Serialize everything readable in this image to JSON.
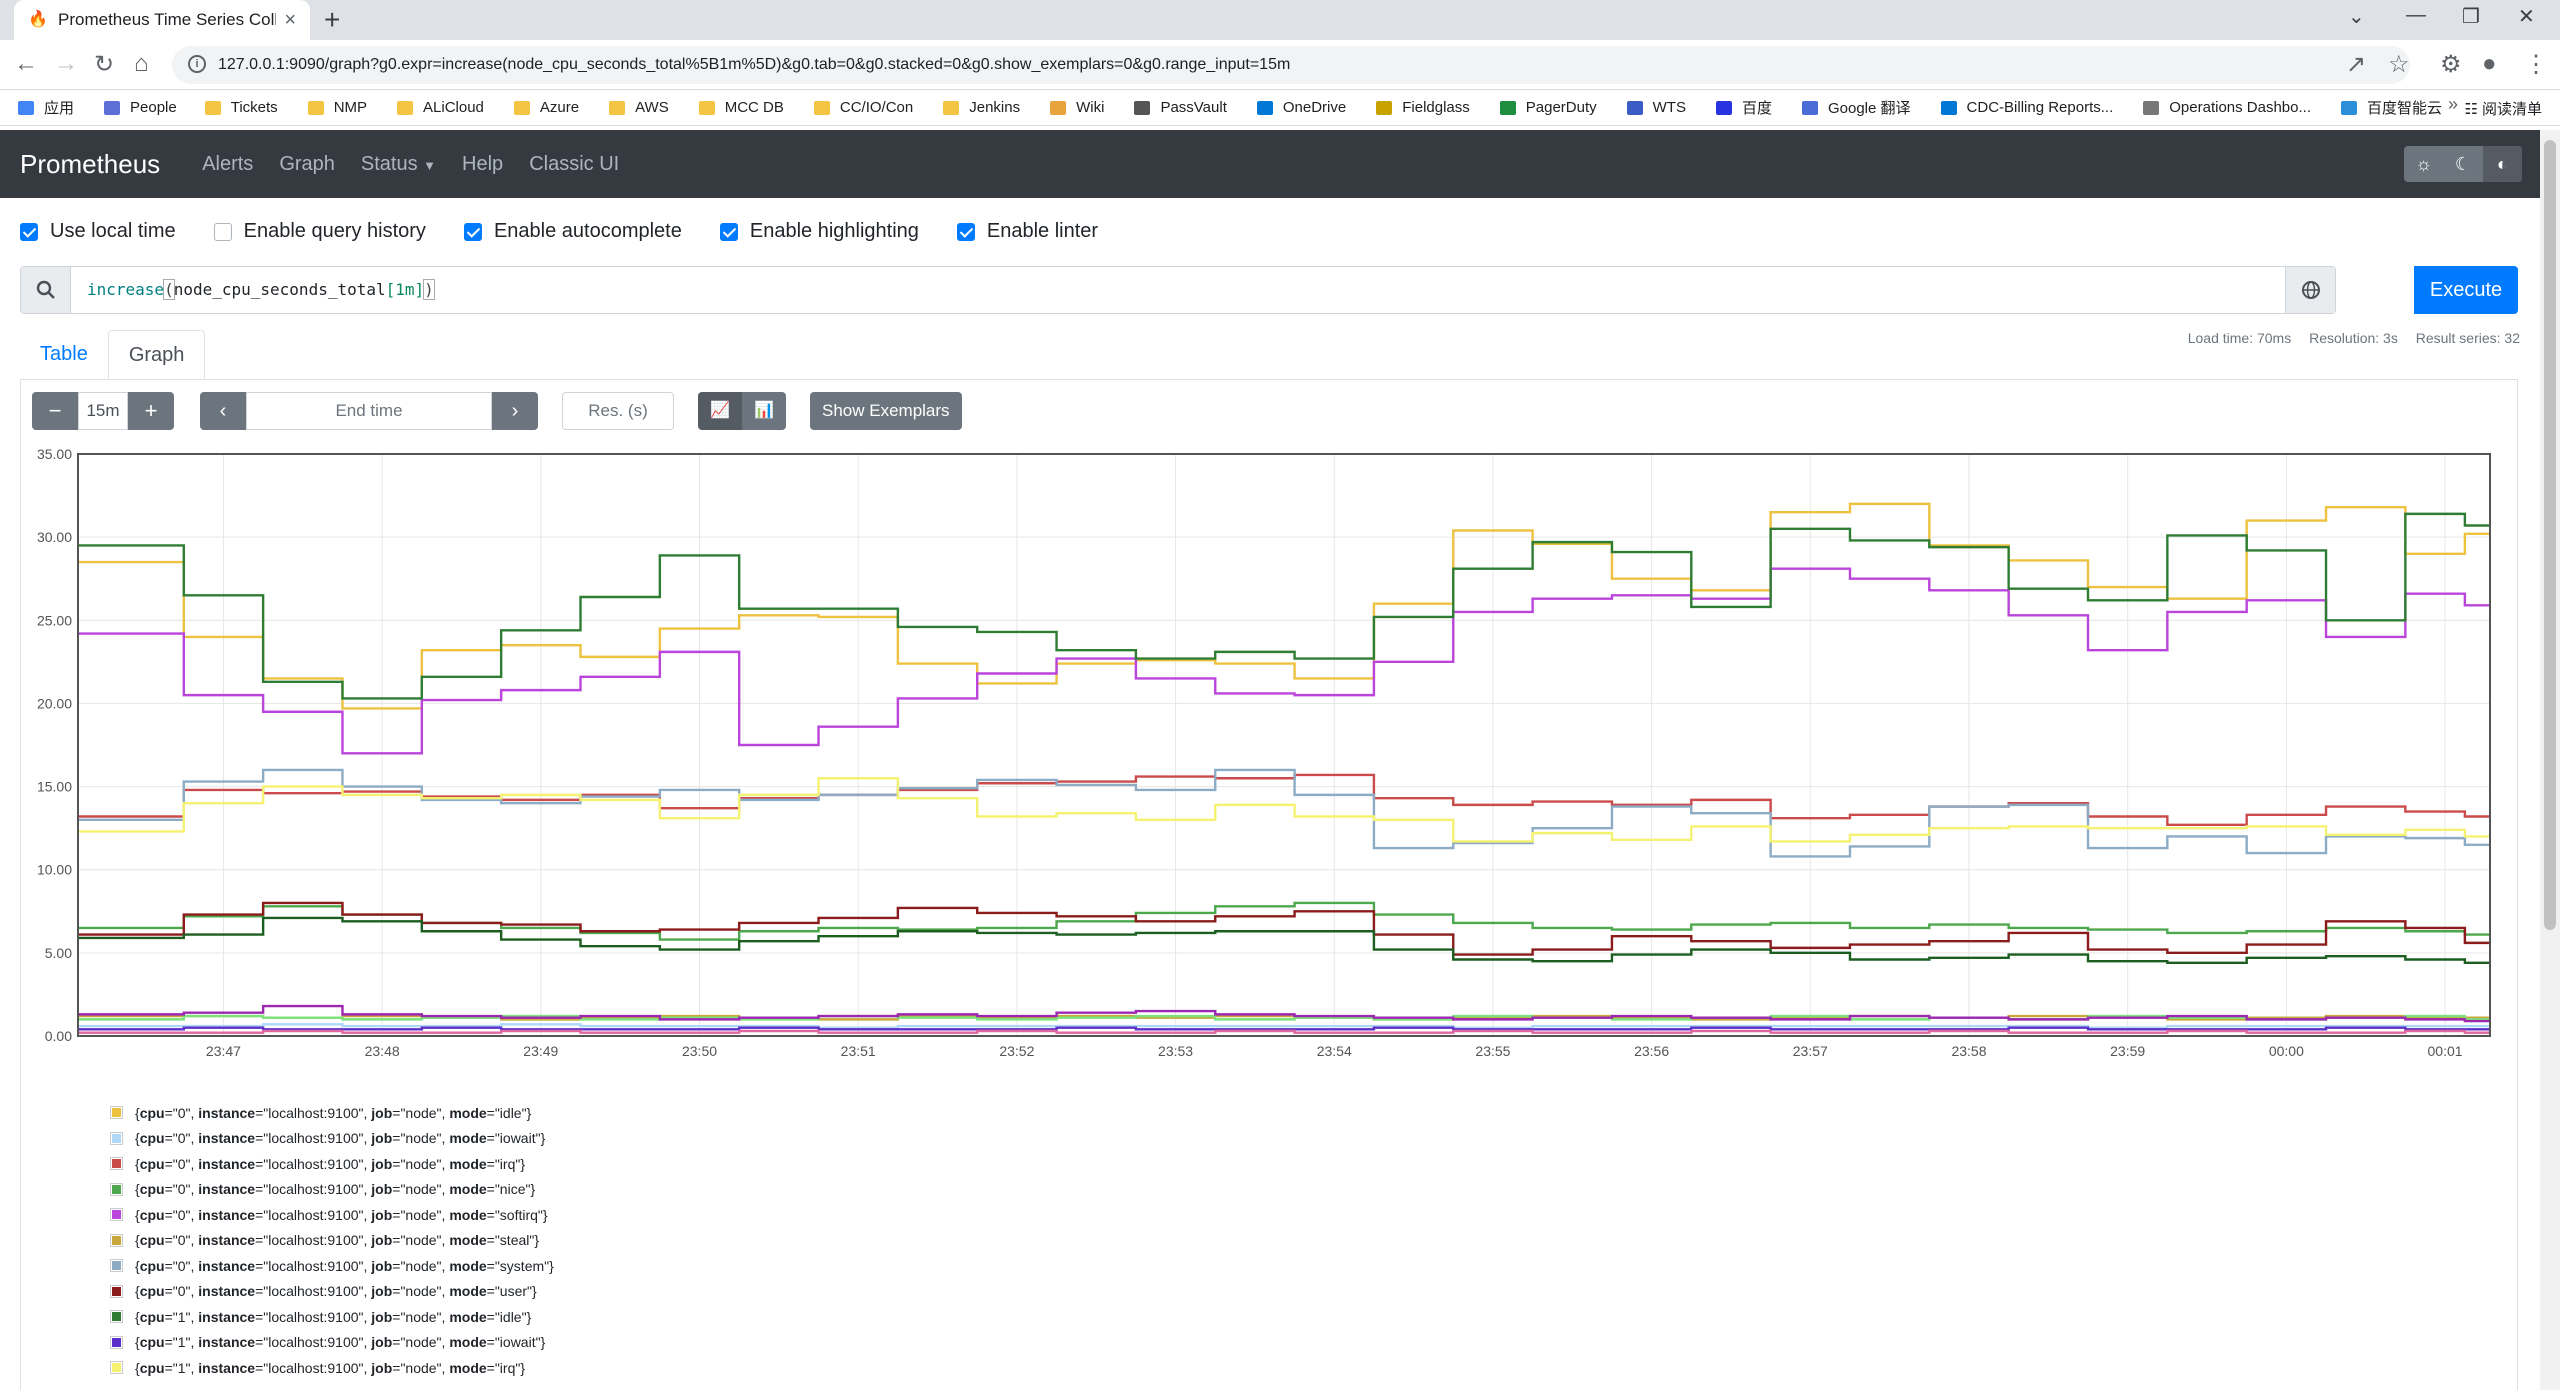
{
  "browser": {
    "tab_title": "Prometheus Time Series Collectio",
    "url": "127.0.0.1:9090/graph?g0.expr=increase(node_cpu_seconds_total%5B1m%5D)&g0.tab=0&g0.stacked=0&g0.show_exemplars=0&g0.range_input=15m",
    "bookmarks": [
      "应用",
      "People",
      "Tickets",
      "NMP",
      "ALiCloud",
      "Azure",
      "AWS",
      "MCC DB",
      "CC/IO/Con",
      "Jenkins",
      "Wiki",
      "PassVault",
      "OneDrive",
      "Fieldglass",
      "PagerDuty",
      "WTS",
      "百度",
      "Google 翻译",
      "CDC-Billing Reports...",
      "Operations Dashbo...",
      "百度智能云"
    ],
    "bookmark_colors": [
      "#4285f4",
      "#5b6fd6",
      "#f4c542",
      "#f4c542",
      "#f4c542",
      "#f4c542",
      "#f4c542",
      "#f4c542",
      "#f4c542",
      "#f4c542",
      "#e8a33d",
      "#555555",
      "#0078d4",
      "#c8a200",
      "#1e8e3e",
      "#3b5cc4",
      "#2932e1",
      "#4b6bd6",
      "#0078d4",
      "#777777",
      "#2b8fd9"
    ],
    "reading_list": "阅读清单"
  },
  "nav": {
    "brand": "Prometheus",
    "links": [
      "Alerts",
      "Graph",
      "Status",
      "Help",
      "Classic UI"
    ]
  },
  "options": [
    {
      "label": "Use local time",
      "checked": true
    },
    {
      "label": "Enable query history",
      "checked": false
    },
    {
      "label": "Enable autocomplete",
      "checked": true
    },
    {
      "label": "Enable highlighting",
      "checked": true
    },
    {
      "label": "Enable linter",
      "checked": true
    }
  ],
  "query": {
    "fn": "increase",
    "metric": "node_cpu_seconds_total",
    "range": "[1m]"
  },
  "execute_label": "Execute",
  "tabs": [
    "Table",
    "Graph"
  ],
  "stats": {
    "load_time": "Load time: 70ms",
    "resolution": "Resolution: 3s",
    "result_series": "Result series: 32"
  },
  "controls": {
    "range": "15m",
    "end_time_placeholder": "End time",
    "res_placeholder": "Res. (s)",
    "exemplars": "Show Exemplars"
  },
  "chart_data": {
    "type": "line",
    "ylim": [
      0,
      35
    ],
    "yticks": [
      "0.00",
      "5.00",
      "10.00",
      "15.00",
      "20.00",
      "25.00",
      "30.00",
      "35.00"
    ],
    "xticks": [
      "23:47",
      "23:48",
      "23:49",
      "23:50",
      "23:51",
      "23:52",
      "23:53",
      "23:54",
      "23:55",
      "23:56",
      "23:57",
      "23:58",
      "23:59",
      "00:00",
      "00:01"
    ],
    "x": [
      "23:46:30",
      "23:47:00",
      "23:47:30",
      "23:48:00",
      "23:48:30",
      "23:49:00",
      "23:49:30",
      "23:50:00",
      "23:50:30",
      "23:51:00",
      "23:51:30",
      "23:52:00",
      "23:52:30",
      "23:53:00",
      "23:53:30",
      "23:54:00",
      "23:54:30",
      "23:55:00",
      "23:55:30",
      "23:56:00",
      "23:56:30",
      "23:57:00",
      "23:57:30",
      "23:58:00",
      "23:58:30",
      "23:59:00",
      "23:59:30",
      "00:00:00",
      "00:00:30",
      "00:01:00",
      "00:01:15"
    ],
    "grid": true,
    "series": [
      {
        "name": "{cpu=\"0\", instance=\"localhost:9100\", job=\"node\", mode=\"idle\"}",
        "color": "#edc240",
        "values": [
          28.5,
          24,
          21.5,
          19.7,
          23.2,
          23.5,
          22.8,
          24.5,
          25.3,
          25.2,
          22.4,
          21.2,
          22.4,
          22.6,
          22.4,
          21.5,
          26,
          30.4,
          29.6,
          27.5,
          26.8,
          31.5,
          32,
          29.5,
          28.6,
          27,
          26.3,
          31,
          31.8,
          29,
          30.2
        ]
      },
      {
        "name": "{cpu=\"0\", instance=\"localhost:9100\", job=\"node\", mode=\"iowait\"}",
        "color": "#afd8f8",
        "values": [
          0.6,
          0.6,
          0.7,
          0.6,
          0.6,
          0.7,
          0.6,
          0.6,
          0.6,
          0.5,
          0.6,
          0.6,
          0.6,
          0.6,
          0.6,
          0.6,
          0.6,
          0.5,
          0.6,
          0.6,
          0.6,
          0.6,
          0.6,
          0.6,
          0.6,
          0.5,
          0.6,
          0.6,
          0.6,
          0.6,
          0.6
        ]
      },
      {
        "name": "{cpu=\"0\", instance=\"localhost:9100\", job=\"node\", mode=\"irq\"}",
        "color": "#cb4b4b",
        "values": [
          13.2,
          14.8,
          14.6,
          14.7,
          14.4,
          14.2,
          14.5,
          13.7,
          14.3,
          14.5,
          14.8,
          15.2,
          15.3,
          15.6,
          15.5,
          15.7,
          14.3,
          13.9,
          14.1,
          13.9,
          14.2,
          13.1,
          13.3,
          13.8,
          14,
          13.2,
          12.7,
          13.3,
          13.8,
          13.5,
          13.2
        ]
      },
      {
        "name": "{cpu=\"0\", instance=\"localhost:9100\", job=\"node\", mode=\"nice\"}",
        "color": "#4da74d",
        "values": [
          6.5,
          7.2,
          7.8,
          7.3,
          6.8,
          6.5,
          6.2,
          5.8,
          6.3,
          6.5,
          6.4,
          6.5,
          6.9,
          7.4,
          7.8,
          8.0,
          7.3,
          6.8,
          6.5,
          6.4,
          6.7,
          6.8,
          6.5,
          6.7,
          6.5,
          6.4,
          6.2,
          6.3,
          6.5,
          6.3,
          6.1
        ]
      },
      {
        "name": "{cpu=\"0\", instance=\"localhost:9100\", job=\"node\", mode=\"softirq\"}",
        "color": "#bb44dd",
        "values": [
          24.2,
          20.5,
          19.5,
          17,
          20.2,
          20.8,
          21.6,
          23.1,
          17.5,
          18.6,
          20.3,
          21.8,
          22.7,
          21.5,
          20.6,
          20.5,
          22.5,
          25.5,
          26.3,
          26.5,
          26.3,
          28.1,
          27.5,
          26.8,
          25.3,
          23.2,
          25.5,
          26.2,
          24,
          26.6,
          25.9
        ]
      },
      {
        "name": "{cpu=\"0\", instance=\"localhost:9100\", job=\"node\", mode=\"steal\"}",
        "color": "#c8a83d",
        "values": [
          1.2,
          1.2,
          1.1,
          1.2,
          1.1,
          1.0,
          1.1,
          1.2,
          1.1,
          1.0,
          1.2,
          1.1,
          1.2,
          1.1,
          1.2,
          1.1,
          1.0,
          1.1,
          1.2,
          1.1,
          1.0,
          1.1,
          1.2,
          1.1,
          1.2,
          1.1,
          1.0,
          1.1,
          1.2,
          1.1,
          1.1
        ]
      },
      {
        "name": "{cpu=\"0\", instance=\"localhost:9100\", job=\"node\", mode=\"system\"}",
        "color": "#8cacc6",
        "values": [
          13,
          15.3,
          16,
          15,
          14.2,
          14,
          14.4,
          14.8,
          14.2,
          14.5,
          14.9,
          15.4,
          15.1,
          14.8,
          16,
          14.5,
          11.3,
          11.6,
          12.5,
          13.8,
          13.4,
          10.8,
          11.4,
          13.8,
          13.9,
          11.3,
          12,
          11,
          12,
          11.9,
          11.5
        ]
      },
      {
        "name": "{cpu=\"0\", instance=\"localhost:9100\", job=\"node\", mode=\"user\"}",
        "color": "#8c1b1b",
        "values": [
          6.1,
          7.3,
          8.0,
          7.3,
          6.8,
          6.7,
          6.3,
          6.4,
          6.8,
          7.1,
          7.7,
          7.4,
          7.2,
          6.9,
          7.2,
          7.5,
          6.1,
          4.9,
          5.2,
          6.0,
          5.7,
          5.3,
          5.5,
          5.7,
          6.2,
          5.2,
          5.0,
          5.5,
          6.9,
          6.5,
          5.6
        ]
      },
      {
        "name": "{cpu=\"1\", instance=\"localhost:9100\", job=\"node\", mode=\"idle\"}",
        "color": "#2e7d32",
        "values": [
          29.5,
          26.5,
          21.3,
          20.3,
          21.6,
          24.4,
          26.4,
          28.9,
          25.7,
          25.7,
          24.6,
          24.3,
          23.2,
          22.7,
          23.1,
          22.7,
          25.2,
          28.1,
          29.7,
          29.1,
          25.8,
          30.5,
          29.8,
          29.4,
          26.9,
          26.2,
          30.1,
          29.2,
          25,
          31.4,
          30.7
        ]
      },
      {
        "name": "{cpu=\"1\", instance=\"localhost:9100\", job=\"node\", mode=\"iowait\"}",
        "color": "#5b2fc9",
        "values": [
          0.4,
          0.5,
          0.4,
          0.4,
          0.5,
          0.4,
          0.4,
          0.4,
          0.5,
          0.4,
          0.4,
          0.4,
          0.5,
          0.4,
          0.4,
          0.4,
          0.5,
          0.4,
          0.4,
          0.4,
          0.5,
          0.4,
          0.4,
          0.4,
          0.5,
          0.4,
          0.4,
          0.4,
          0.5,
          0.4,
          0.4
        ]
      },
      {
        "name": "{cpu=\"1\", instance=\"localhost:9100\", job=\"node\", mode=\"irq\"}",
        "color": "#f5f272",
        "values": [
          12.3,
          14,
          15,
          14.5,
          14.3,
          14.5,
          14.2,
          13.1,
          14.5,
          15.5,
          14.3,
          13.2,
          13.4,
          13,
          13.9,
          13.2,
          13.0,
          11.7,
          12.2,
          11.8,
          12.6,
          11.7,
          12.1,
          12.5,
          12.6,
          12.5,
          12.5,
          12.6,
          12.1,
          12.4,
          12.0
        ]
      },
      {
        "name": "{cpu=\"1\", instance=\"localhost:9100\", job=\"node\", mode=\"nice\"}",
        "color": "#7be37b",
        "values": [
          1.0,
          1.2,
          1.1,
          1.0,
          1.1,
          1.2,
          1.0,
          1.1,
          1.0,
          1.2,
          1.1,
          1.0,
          1.1,
          1.2,
          1.0,
          1.1,
          1.0,
          1.2,
          1.1,
          1.0,
          1.1,
          1.2,
          1.0,
          1.1,
          1.0,
          1.2,
          1.1,
          1.0,
          1.1,
          1.2,
          1.0
        ]
      },
      {
        "name": "",
        "color": "#e066a0",
        "values": [
          0.2,
          0.2,
          0.3,
          0.2,
          0.2,
          0.3,
          0.2,
          0.2,
          0.3,
          0.2,
          0.2,
          0.3,
          0.2,
          0.2,
          0.3,
          0.2,
          0.2,
          0.3,
          0.2,
          0.2,
          0.3,
          0.2,
          0.2,
          0.3,
          0.2,
          0.2,
          0.3,
          0.2,
          0.2,
          0.3,
          0.2
        ]
      },
      {
        "name": "",
        "color": "#1b5e20",
        "values": [
          5.9,
          6.1,
          7.1,
          6.9,
          6.3,
          5.8,
          5.4,
          5.2,
          5.7,
          6.0,
          6.3,
          6.2,
          6.1,
          6.2,
          6.3,
          6.3,
          5.2,
          4.6,
          4.5,
          4.9,
          5.2,
          5.0,
          4.6,
          4.7,
          4.9,
          4.5,
          4.4,
          4.7,
          4.8,
          4.6,
          4.4
        ]
      },
      {
        "name": "",
        "color": "#9c27b0",
        "values": [
          1.3,
          1.4,
          1.8,
          1.3,
          1.2,
          1.1,
          1.2,
          1.0,
          1.1,
          1.2,
          1.3,
          1.2,
          1.4,
          1.5,
          1.3,
          1.2,
          1.1,
          1.0,
          1.1,
          1.2,
          1.1,
          1.0,
          1.2,
          1.1,
          1.0,
          1.1,
          1.2,
          1.0,
          1.1,
          1.0,
          0.9
        ]
      }
    ]
  },
  "legend": [
    {
      "cpu": "0",
      "mode": "idle",
      "color": "#edc240"
    },
    {
      "cpu": "0",
      "mode": "iowait",
      "color": "#afd8f8"
    },
    {
      "cpu": "0",
      "mode": "irq",
      "color": "#cb4b4b"
    },
    {
      "cpu": "0",
      "mode": "nice",
      "color": "#4da74d"
    },
    {
      "cpu": "0",
      "mode": "softirq",
      "color": "#bb44dd"
    },
    {
      "cpu": "0",
      "mode": "steal",
      "color": "#c8a83d"
    },
    {
      "cpu": "0",
      "mode": "system",
      "color": "#8cacc6"
    },
    {
      "cpu": "0",
      "mode": "user",
      "color": "#8c1b1b"
    },
    {
      "cpu": "1",
      "mode": "idle",
      "color": "#2e7d32"
    },
    {
      "cpu": "1",
      "mode": "iowait",
      "color": "#5b2fc9"
    },
    {
      "cpu": "1",
      "mode": "irq",
      "color": "#f5f272"
    }
  ],
  "legend_keys": {
    "cpu": "cpu",
    "instance": "instance",
    "instance_value": "localhost:9100",
    "job": "job",
    "job_value": "node",
    "mode": "mode"
  }
}
